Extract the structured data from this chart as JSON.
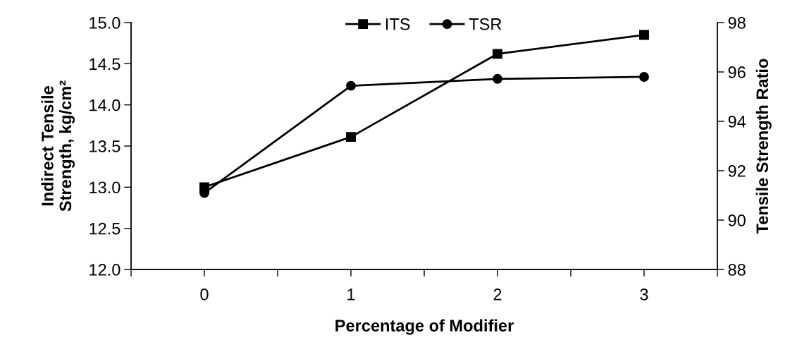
{
  "chart_data": {
    "type": "line",
    "xlabel": "Percentage of Modifier",
    "ylabel": "Indirect Tensile\nStrength, kg/cm²",
    "y2label": "Tensile Strength Ratio",
    "x": [
      0,
      1,
      2,
      3
    ],
    "xlim": [
      -0.5,
      3.5
    ],
    "xticks": [
      {
        "value": -0.5,
        "label": null
      },
      0,
      {
        "value": 0.5,
        "label": null
      },
      1,
      {
        "value": 1.5,
        "label": null
      },
      2,
      {
        "value": 2.5,
        "label": null
      },
      3,
      {
        "value": 3.5,
        "label": null
      }
    ],
    "ylim": [
      12.0,
      15.0
    ],
    "yticks": [
      {
        "value": 12.0,
        "label": "12.0"
      },
      12.5,
      {
        "value": 13.0,
        "label": "13.0"
      },
      13.5,
      {
        "value": 14.0,
        "label": "14.0"
      },
      14.5,
      {
        "value": 15.0,
        "label": "15.0"
      }
    ],
    "y2lim": [
      88,
      98
    ],
    "y2ticks": [
      88,
      90,
      92,
      94,
      96,
      98
    ],
    "series": [
      {
        "name": "ITS",
        "color": "#000000",
        "marker": "square",
        "values": [
          13.0,
          13.61,
          14.62,
          14.85
        ]
      },
      {
        "name": "TSR",
        "color": "#000000",
        "marker": "circle",
        "axis": "y2",
        "values": [
          91.1,
          95.44,
          95.72,
          95.8
        ]
      }
    ],
    "legend": "top",
    "grid": false,
    "line_style": "solid"
  }
}
